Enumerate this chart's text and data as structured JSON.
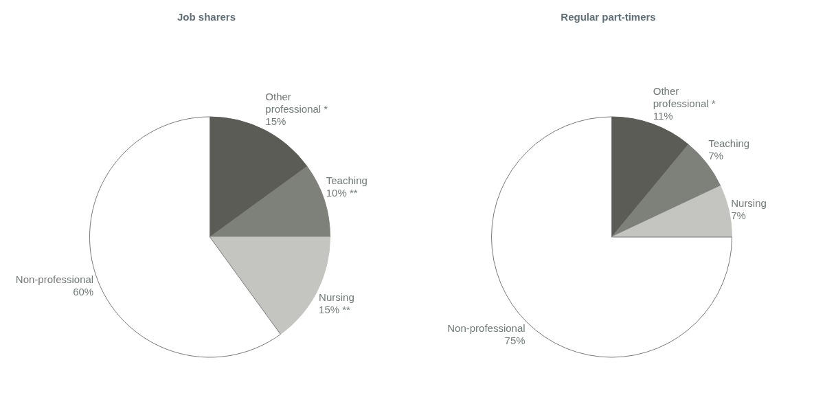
{
  "chart_data": [
    {
      "type": "pie",
      "title": "Job sharers",
      "categories": [
        "Other professional *",
        "Teaching",
        "Nursing",
        "Non-professional"
      ],
      "values": [
        15,
        10,
        15,
        60
      ],
      "colors": [
        "#5a5c55",
        "#7e807a",
        "#c4c5c0",
        "#ffffff"
      ],
      "value_labels": [
        "15%",
        "10% **",
        "15% **",
        "60%"
      ]
    },
    {
      "type": "pie",
      "title": "Regular part-timers",
      "categories": [
        "Other professional *",
        "Teaching",
        "Nursing",
        "Non-professional"
      ],
      "values": [
        11,
        7,
        7,
        75
      ],
      "colors": [
        "#5a5c55",
        "#7e807a",
        "#c4c5c0",
        "#ffffff"
      ],
      "value_labels": [
        "11%",
        "7%",
        "7%",
        "75%"
      ]
    }
  ]
}
